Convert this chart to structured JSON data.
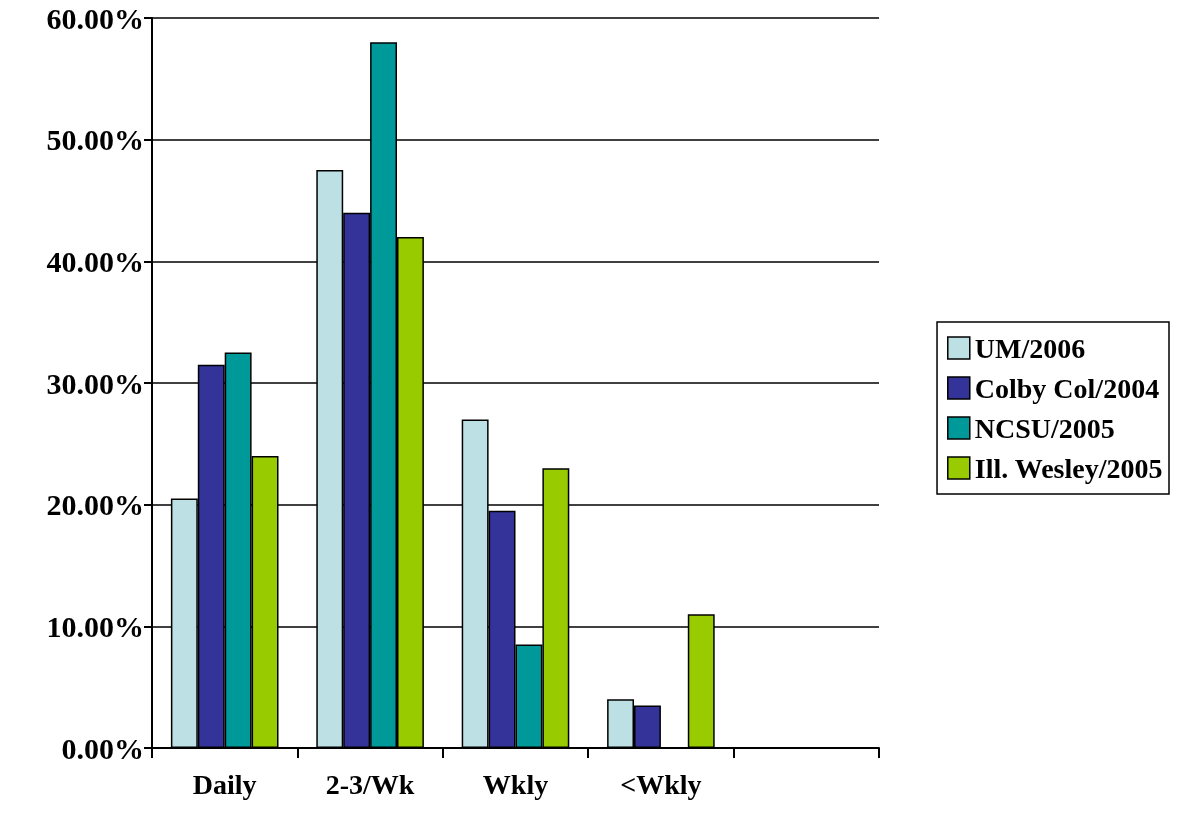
{
  "chart_data": {
    "type": "bar",
    "categories": [
      "Daily",
      "2-3/Wk",
      "Wkly",
      "<Wkly",
      null
    ],
    "series": [
      {
        "name": "UM/2006",
        "color": "#bde0e4",
        "values": [
          20.5,
          47.5,
          27,
          4,
          null
        ]
      },
      {
        "name": "Colby Col/2004",
        "color": "#333399",
        "values": [
          31.5,
          44,
          19.5,
          3.5,
          null
        ]
      },
      {
        "name": "NCSU/2005",
        "color": "#009999",
        "values": [
          32.5,
          58,
          8.5,
          null,
          null
        ]
      },
      {
        "name": "Ill. Wesley/2005",
        "color": "#99cc00",
        "values": [
          24,
          42,
          23,
          11,
          null
        ]
      }
    ],
    "ylim": [
      0,
      60
    ],
    "yticks": [
      {
        "value": 0,
        "label": "0.00%"
      },
      {
        "value": 10,
        "label": "10.00%"
      },
      {
        "value": 20,
        "label": "20.00%"
      },
      {
        "value": 30,
        "label": "30.00%"
      },
      {
        "value": 40,
        "label": "40.00%"
      },
      {
        "value": 50,
        "label": "50.00%"
      },
      {
        "value": 60,
        "label": "60.00%"
      }
    ],
    "grid": "y",
    "legend": "right"
  }
}
